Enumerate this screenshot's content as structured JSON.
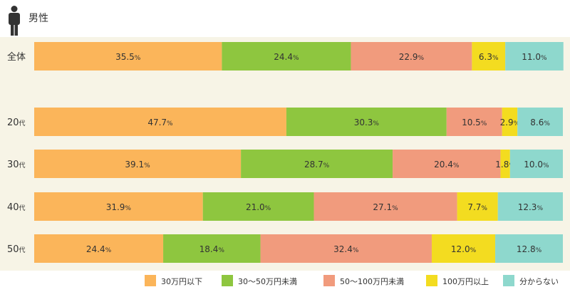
{
  "header": {
    "title": "男性",
    "icon": "person-icon",
    "icon_color": "#333333"
  },
  "chart_data": {
    "type": "bar",
    "orientation": "horizontal",
    "stacked": true,
    "title": "",
    "categories": [
      "全体",
      "20代",
      "30代",
      "40代",
      "50代"
    ],
    "category_parts": [
      {
        "main": "全体",
        "suffix": ""
      },
      {
        "main": "20",
        "suffix": "代"
      },
      {
        "main": "30",
        "suffix": "代"
      },
      {
        "main": "40",
        "suffix": "代"
      },
      {
        "main": "50",
        "suffix": "代"
      }
    ],
    "series": [
      {
        "name": "30万円以下",
        "color": "#fbb55a",
        "values": [
          35.5,
          47.7,
          39.1,
          31.9,
          24.4
        ]
      },
      {
        "name": "30～50万円未満",
        "color": "#8ec63f",
        "values": [
          24.4,
          30.3,
          28.7,
          21.0,
          18.4
        ]
      },
      {
        "name": "50～100万円未満",
        "color": "#f19b7d",
        "values": [
          22.9,
          10.5,
          20.4,
          27.1,
          32.4
        ]
      },
      {
        "name": "100万円以上",
        "color": "#f3dc20",
        "values": [
          6.3,
          2.9,
          1.8,
          7.7,
          12.0
        ]
      },
      {
        "name": "分からない",
        "color": "#8ed8cd",
        "values": [
          11.0,
          8.6,
          10.0,
          12.3,
          12.8
        ]
      }
    ],
    "value_suffix": "%",
    "xlim": [
      0,
      100
    ],
    "grid": false,
    "legend_position": "bottom"
  }
}
